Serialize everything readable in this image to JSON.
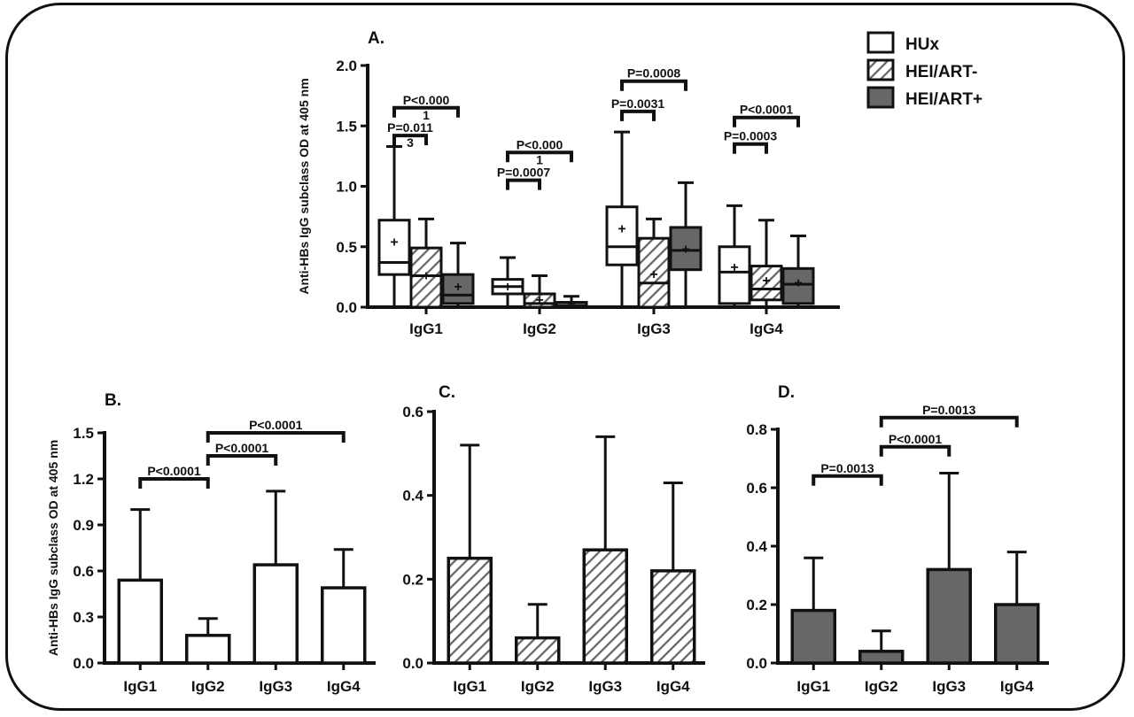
{
  "chart_data": [
    {
      "id": "A",
      "panel_label": "A.",
      "type": "box",
      "ylabel": "Anti-HBs IgG subclass OD at 405 nm",
      "ylim": [
        0,
        2.0
      ],
      "yticks": [
        "0.0",
        "0.5",
        "1.0",
        "1.5",
        "2.0"
      ],
      "categories": [
        "IgG1",
        "IgG2",
        "IgG3",
        "IgG4"
      ],
      "legend": [
        {
          "name": "HUx",
          "fill": "white"
        },
        {
          "name": "HEI/ART-",
          "fill": "hatch"
        },
        {
          "name": "HEI/ART+",
          "fill": "gray"
        }
      ],
      "series": [
        {
          "name": "HUx",
          "fill": "white",
          "boxes": [
            {
              "min": 0.0,
              "q1": 0.27,
              "median": 0.37,
              "q3": 0.72,
              "max": 1.33,
              "mean": 0.54
            },
            {
              "min": 0.0,
              "q1": 0.11,
              "median": 0.17,
              "q3": 0.23,
              "max": 0.41,
              "mean": 0.17
            },
            {
              "min": 0.0,
              "q1": 0.35,
              "median": 0.5,
              "q3": 0.83,
              "max": 1.45,
              "mean": 0.65
            },
            {
              "min": 0.0,
              "q1": 0.03,
              "median": 0.29,
              "q3": 0.5,
              "max": 0.84,
              "mean": 0.33
            }
          ]
        },
        {
          "name": "HEI/ART-",
          "fill": "hatch",
          "boxes": [
            {
              "min": 0.0,
              "q1": 0.0,
              "median": 0.26,
              "q3": 0.49,
              "max": 0.73,
              "mean": 0.26
            },
            {
              "min": 0.0,
              "q1": 0.0,
              "median": 0.03,
              "q3": 0.11,
              "max": 0.26,
              "mean": 0.06
            },
            {
              "min": 0.0,
              "q1": 0.0,
              "median": 0.2,
              "q3": 0.57,
              "max": 0.73,
              "mean": 0.27
            },
            {
              "min": 0.0,
              "q1": 0.06,
              "median": 0.15,
              "q3": 0.34,
              "max": 0.72,
              "mean": 0.22
            }
          ]
        },
        {
          "name": "HEI/ART+",
          "fill": "gray",
          "boxes": [
            {
              "min": 0.0,
              "q1": 0.03,
              "median": 0.1,
              "q3": 0.27,
              "max": 0.53,
              "mean": 0.17
            },
            {
              "min": 0.0,
              "q1": 0.0,
              "median": 0.01,
              "q3": 0.04,
              "max": 0.09,
              "mean": 0.03
            },
            {
              "min": 0.0,
              "q1": 0.31,
              "median": 0.47,
              "q3": 0.66,
              "max": 1.03,
              "mean": 0.48
            },
            {
              "min": 0.0,
              "q1": 0.03,
              "median": 0.19,
              "q3": 0.32,
              "max": 0.59,
              "mean": 0.2
            }
          ]
        }
      ],
      "comparisons": [
        {
          "from": [
            0,
            0
          ],
          "to": [
            0,
            2
          ],
          "y": 1.65,
          "label": "P<0.000",
          "label2": "1"
        },
        {
          "from": [
            0,
            0
          ],
          "to": [
            0,
            1
          ],
          "y": 1.42,
          "label": "P=0.011",
          "label2": "3"
        },
        {
          "from": [
            1,
            0
          ],
          "to": [
            1,
            2
          ],
          "y": 1.28,
          "label": "P<0.000",
          "label2": "1"
        },
        {
          "from": [
            1,
            0
          ],
          "to": [
            1,
            1
          ],
          "y": 1.05,
          "label": "P=0.0007",
          "label2": ""
        },
        {
          "from": [
            2,
            0
          ],
          "to": [
            2,
            2
          ],
          "y": 1.87,
          "label": "P=0.0008",
          "label2": ""
        },
        {
          "from": [
            2,
            0
          ],
          "to": [
            2,
            1
          ],
          "y": 1.62,
          "label": "P=0.0031",
          "label2": ""
        },
        {
          "from": [
            3,
            0
          ],
          "to": [
            3,
            2
          ],
          "y": 1.57,
          "label": "P<0.0001",
          "label2": ""
        },
        {
          "from": [
            3,
            0
          ],
          "to": [
            3,
            1
          ],
          "y": 1.35,
          "label": "P=0.0003",
          "label2": ""
        }
      ]
    },
    {
      "id": "B",
      "panel_label": "B.",
      "type": "bar",
      "fill": "white",
      "ylabel": "Anti-HBs IgG subclass OD at 405 nm",
      "ylim": [
        0,
        1.5
      ],
      "yticks": [
        "0.0",
        "0.3",
        "0.6",
        "0.9",
        "1.2",
        "1.5"
      ],
      "categories": [
        "IgG1",
        "IgG2",
        "IgG3",
        "IgG4"
      ],
      "values": [
        0.54,
        0.18,
        0.64,
        0.49
      ],
      "errors": [
        0.46,
        0.11,
        0.48,
        0.25
      ],
      "comparisons": [
        {
          "from": 0,
          "to": 1,
          "y": 1.2,
          "label": "P<0.0001"
        },
        {
          "from": 1,
          "to": 2,
          "y": 1.35,
          "label": "P<0.0001"
        },
        {
          "from": 1,
          "to": 3,
          "y": 1.5,
          "label": "P<0.0001"
        }
      ]
    },
    {
      "id": "C",
      "panel_label": "C.",
      "type": "bar",
      "fill": "hatch",
      "ylabel": "",
      "ylim": [
        0,
        0.6
      ],
      "yticks": [
        "0.0",
        "0.2",
        "0.4",
        "0.6"
      ],
      "categories": [
        "IgG1",
        "IgG2",
        "IgG3",
        "IgG4"
      ],
      "values": [
        0.25,
        0.06,
        0.27,
        0.22
      ],
      "errors": [
        0.27,
        0.08,
        0.27,
        0.21
      ],
      "comparisons": []
    },
    {
      "id": "D",
      "panel_label": "D.",
      "type": "bar",
      "fill": "gray",
      "ylabel": "",
      "ylim": [
        0,
        0.8
      ],
      "yticks": [
        "0.0",
        "0.2",
        "0.4",
        "0.6",
        "0.8"
      ],
      "categories": [
        "IgG1",
        "IgG2",
        "IgG3",
        "IgG4"
      ],
      "values": [
        0.18,
        0.04,
        0.32,
        0.2
      ],
      "errors": [
        0.18,
        0.07,
        0.33,
        0.18
      ],
      "comparisons": [
        {
          "from": 0,
          "to": 1,
          "y": 0.64,
          "label": "P=0.0013"
        },
        {
          "from": 1,
          "to": 2,
          "y": 0.74,
          "label": "P<0.0001"
        },
        {
          "from": 1,
          "to": 3,
          "y": 0.84,
          "label": "P=0.0013"
        }
      ]
    }
  ],
  "colors": {
    "gray_fill": "#676767",
    "hatch_line": "#666666",
    "ink": "#111111"
  }
}
